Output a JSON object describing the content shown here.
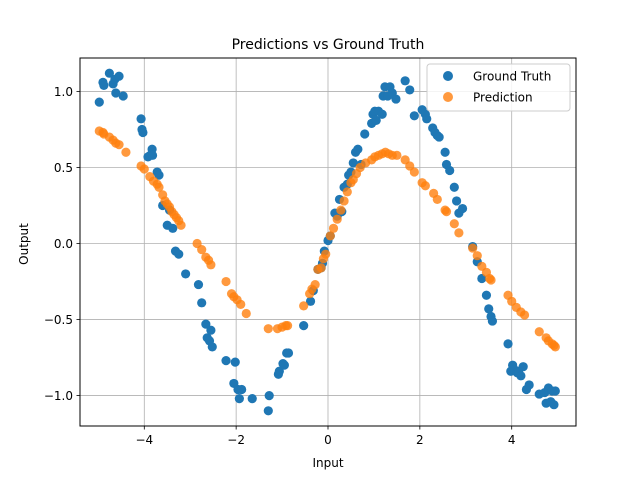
{
  "chart_data": {
    "type": "scatter",
    "title": "Predictions vs Ground Truth",
    "xlabel": "Input",
    "ylabel": "Output",
    "xlim": [
      -5.4,
      5.4
    ],
    "ylim": [
      -1.2,
      1.22
    ],
    "xticks": [
      -4,
      -2,
      0,
      2,
      4
    ],
    "yticks": [
      -1.0,
      -0.5,
      0.0,
      0.5,
      1.0
    ],
    "xtick_labels": [
      "−4",
      "−2",
      "0",
      "2",
      "4"
    ],
    "ytick_labels": [
      "−1.0",
      "−0.5",
      "0.0",
      "0.5",
      "1.0"
    ],
    "grid": true,
    "legend_position": "top-right",
    "series": [
      {
        "name": "Ground Truth",
        "color": "#1f77b4",
        "points": [
          [
            -4.98,
            0.93
          ],
          [
            -4.9,
            1.06
          ],
          [
            -4.88,
            1.04
          ],
          [
            -4.76,
            1.12
          ],
          [
            -4.68,
            1.05
          ],
          [
            -4.64,
            1.08
          ],
          [
            -4.62,
            0.99
          ],
          [
            -4.55,
            1.1
          ],
          [
            -4.46,
            0.97
          ],
          [
            -4.07,
            0.82
          ],
          [
            -4.05,
            0.75
          ],
          [
            -4.03,
            0.73
          ],
          [
            -3.92,
            0.57
          ],
          [
            -3.87,
            0.58
          ],
          [
            -3.83,
            0.62
          ],
          [
            -3.82,
            0.58
          ],
          [
            -3.72,
            0.47
          ],
          [
            -3.68,
            0.45
          ],
          [
            -3.6,
            0.25
          ],
          [
            -3.5,
            0.12
          ],
          [
            -3.45,
            0.22
          ],
          [
            -3.38,
            0.1
          ],
          [
            -3.32,
            -0.05
          ],
          [
            -3.25,
            -0.07
          ],
          [
            -3.1,
            -0.2
          ],
          [
            -2.82,
            -0.27
          ],
          [
            -2.75,
            -0.39
          ],
          [
            -2.66,
            -0.53
          ],
          [
            -2.63,
            -0.62
          ],
          [
            -2.58,
            -0.64
          ],
          [
            -2.55,
            -0.57
          ],
          [
            -2.52,
            -0.68
          ],
          [
            -2.22,
            -0.77
          ],
          [
            -2.05,
            -0.92
          ],
          [
            -2.02,
            -0.78
          ],
          [
            -1.96,
            -0.96
          ],
          [
            -1.93,
            -1.02
          ],
          [
            -1.88,
            -0.96
          ],
          [
            -1.65,
            -1.02
          ],
          [
            -1.3,
            -1.1
          ],
          [
            -1.28,
            -1.0
          ],
          [
            -1.08,
            -0.86
          ],
          [
            -1.06,
            -0.84
          ],
          [
            -0.98,
            -0.79
          ],
          [
            -0.95,
            -0.8
          ],
          [
            -0.9,
            -0.72
          ],
          [
            -0.86,
            -0.72
          ],
          [
            -0.53,
            -0.54
          ],
          [
            -0.38,
            -0.38
          ],
          [
            -0.32,
            -0.31
          ],
          [
            -0.22,
            -0.17
          ],
          [
            -0.15,
            -0.16
          ],
          [
            -0.12,
            -0.13
          ],
          [
            -0.08,
            -0.05
          ],
          [
            0.0,
            0.02
          ],
          [
            0.05,
            0.05
          ],
          [
            0.15,
            0.2
          ],
          [
            0.2,
            0.18
          ],
          [
            0.25,
            0.29
          ],
          [
            0.3,
            0.21
          ],
          [
            0.35,
            0.37
          ],
          [
            0.42,
            0.39
          ],
          [
            0.45,
            0.45
          ],
          [
            0.5,
            0.47
          ],
          [
            0.55,
            0.53
          ],
          [
            0.6,
            0.6
          ],
          [
            0.65,
            0.62
          ],
          [
            0.72,
            0.52
          ],
          [
            0.8,
            0.72
          ],
          [
            0.95,
            0.79
          ],
          [
            0.98,
            0.85
          ],
          [
            1.02,
            0.87
          ],
          [
            1.05,
            0.81
          ],
          [
            1.1,
            0.87
          ],
          [
            1.18,
            0.85
          ],
          [
            1.2,
            0.97
          ],
          [
            1.24,
            1.03
          ],
          [
            1.3,
            0.97
          ],
          [
            1.35,
            1.03
          ],
          [
            1.4,
            0.99
          ],
          [
            1.48,
            0.95
          ],
          [
            1.68,
            1.07
          ],
          [
            1.78,
            1.01
          ],
          [
            1.88,
            0.84
          ],
          [
            2.05,
            0.88
          ],
          [
            2.12,
            0.85
          ],
          [
            2.15,
            0.82
          ],
          [
            2.28,
            0.76
          ],
          [
            2.33,
            0.73
          ],
          [
            2.38,
            0.71
          ],
          [
            2.42,
            0.7
          ],
          [
            2.55,
            0.6
          ],
          [
            2.58,
            0.52
          ],
          [
            2.65,
            0.48
          ],
          [
            2.75,
            0.37
          ],
          [
            2.8,
            0.28
          ],
          [
            2.85,
            0.2
          ],
          [
            2.93,
            0.23
          ],
          [
            3.15,
            -0.02
          ],
          [
            3.25,
            -0.12
          ],
          [
            3.35,
            -0.23
          ],
          [
            3.45,
            -0.34
          ],
          [
            3.5,
            -0.43
          ],
          [
            3.55,
            -0.48
          ],
          [
            3.58,
            -0.51
          ],
          [
            3.92,
            -0.66
          ],
          [
            3.98,
            -0.84
          ],
          [
            4.02,
            -0.8
          ],
          [
            4.06,
            -0.83
          ],
          [
            4.12,
            -0.85
          ],
          [
            4.15,
            -0.84
          ],
          [
            4.2,
            -0.87
          ],
          [
            4.25,
            -0.81
          ],
          [
            4.32,
            -0.96
          ],
          [
            4.38,
            -0.93
          ],
          [
            4.6,
            -0.99
          ],
          [
            4.72,
            -0.98
          ],
          [
            4.75,
            -1.05
          ],
          [
            4.8,
            -0.95
          ],
          [
            4.85,
            -1.04
          ],
          [
            4.88,
            -0.97
          ],
          [
            4.92,
            -1.06
          ],
          [
            4.95,
            -0.97
          ]
        ]
      },
      {
        "name": "Prediction",
        "color": "#ff7f0e",
        "points": [
          [
            -4.98,
            0.74
          ],
          [
            -4.9,
            0.73
          ],
          [
            -4.88,
            0.72
          ],
          [
            -4.76,
            0.7
          ],
          [
            -4.68,
            0.68
          ],
          [
            -4.62,
            0.66
          ],
          [
            -4.55,
            0.65
          ],
          [
            -4.4,
            0.6
          ],
          [
            -4.07,
            0.51
          ],
          [
            -4.0,
            0.49
          ],
          [
            -3.88,
            0.44
          ],
          [
            -3.8,
            0.41
          ],
          [
            -3.72,
            0.39
          ],
          [
            -3.68,
            0.37
          ],
          [
            -3.6,
            0.32
          ],
          [
            -3.55,
            0.28
          ],
          [
            -3.5,
            0.26
          ],
          [
            -3.45,
            0.24
          ],
          [
            -3.4,
            0.21
          ],
          [
            -3.35,
            0.19
          ],
          [
            -3.3,
            0.17
          ],
          [
            -3.25,
            0.15
          ],
          [
            -3.2,
            0.12
          ],
          [
            -2.85,
            0.0
          ],
          [
            -2.75,
            -0.04
          ],
          [
            -2.66,
            -0.09
          ],
          [
            -2.6,
            -0.11
          ],
          [
            -2.55,
            -0.14
          ],
          [
            -2.22,
            -0.25
          ],
          [
            -2.1,
            -0.33
          ],
          [
            -2.05,
            -0.35
          ],
          [
            -1.98,
            -0.37
          ],
          [
            -1.9,
            -0.4
          ],
          [
            -1.78,
            -0.46
          ],
          [
            -1.3,
            -0.56
          ],
          [
            -1.1,
            -0.56
          ],
          [
            -1.0,
            -0.55
          ],
          [
            -0.92,
            -0.54
          ],
          [
            -0.88,
            -0.54
          ],
          [
            -0.53,
            -0.41
          ],
          [
            -0.4,
            -0.33
          ],
          [
            -0.35,
            -0.3
          ],
          [
            -0.28,
            -0.27
          ],
          [
            -0.22,
            -0.17
          ],
          [
            -0.15,
            -0.16
          ],
          [
            -0.1,
            -0.1
          ],
          [
            -0.05,
            -0.07
          ],
          [
            0.05,
            0.05
          ],
          [
            0.12,
            0.1
          ],
          [
            0.2,
            0.16
          ],
          [
            0.28,
            0.22
          ],
          [
            0.35,
            0.28
          ],
          [
            0.42,
            0.34
          ],
          [
            0.5,
            0.4
          ],
          [
            0.55,
            0.42
          ],
          [
            0.62,
            0.46
          ],
          [
            0.7,
            0.5
          ],
          [
            0.82,
            0.53
          ],
          [
            0.95,
            0.55
          ],
          [
            1.02,
            0.57
          ],
          [
            1.1,
            0.58
          ],
          [
            1.18,
            0.59
          ],
          [
            1.25,
            0.6
          ],
          [
            1.32,
            0.59
          ],
          [
            1.4,
            0.58
          ],
          [
            1.5,
            0.58
          ],
          [
            1.68,
            0.55
          ],
          [
            1.78,
            0.51
          ],
          [
            1.88,
            0.47
          ],
          [
            2.05,
            0.4
          ],
          [
            2.12,
            0.38
          ],
          [
            2.3,
            0.33
          ],
          [
            2.38,
            0.29
          ],
          [
            2.55,
            0.22
          ],
          [
            2.58,
            0.21
          ],
          [
            2.75,
            0.13
          ],
          [
            2.85,
            0.07
          ],
          [
            3.15,
            -0.03
          ],
          [
            3.25,
            -0.08
          ],
          [
            3.35,
            -0.15
          ],
          [
            3.45,
            -0.19
          ],
          [
            3.52,
            -0.23
          ],
          [
            3.55,
            -0.24
          ],
          [
            3.92,
            -0.34
          ],
          [
            4.0,
            -0.38
          ],
          [
            4.1,
            -0.42
          ],
          [
            4.2,
            -0.45
          ],
          [
            4.28,
            -0.47
          ],
          [
            4.6,
            -0.58
          ],
          [
            4.75,
            -0.62
          ],
          [
            4.8,
            -0.64
          ],
          [
            4.88,
            -0.66
          ],
          [
            4.92,
            -0.67
          ],
          [
            4.95,
            -0.68
          ]
        ]
      }
    ]
  }
}
